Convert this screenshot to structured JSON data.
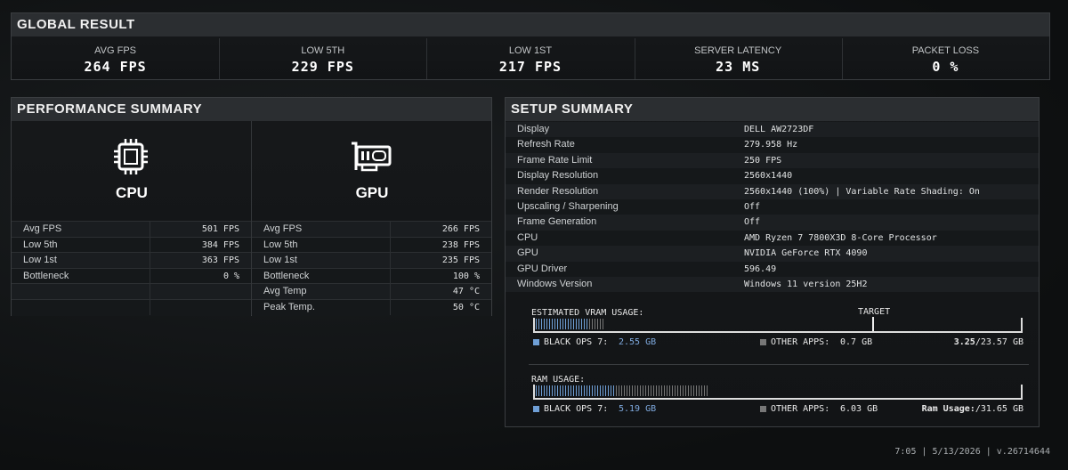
{
  "global_result": {
    "title": "GLOBAL RESULT",
    "stats": [
      {
        "label": "AVG FPS",
        "value": "264 FPS"
      },
      {
        "label": "LOW 5TH",
        "value": "229 FPS"
      },
      {
        "label": "LOW 1ST",
        "value": "217 FPS"
      },
      {
        "label": "SERVER LATENCY",
        "value": "23 MS"
      },
      {
        "label": "PACKET LOSS",
        "value": "0 %"
      }
    ]
  },
  "performance_summary": {
    "title": "PERFORMANCE SUMMARY",
    "cpu": {
      "name": "CPU",
      "rows": [
        [
          "Avg FPS",
          "501 FPS"
        ],
        [
          "Low 5th",
          "384 FPS"
        ],
        [
          "Low 1st",
          "363 FPS"
        ],
        [
          "Bottleneck",
          "0 %"
        ]
      ]
    },
    "gpu": {
      "name": "GPU",
      "rows": [
        [
          "Avg FPS",
          "266 FPS"
        ],
        [
          "Low 5th",
          "238 FPS"
        ],
        [
          "Low 1st",
          "235 FPS"
        ],
        [
          "Bottleneck",
          "100 %"
        ],
        [
          "Avg Temp",
          "47 °C"
        ],
        [
          "Peak Temp.",
          "50 °C"
        ]
      ]
    }
  },
  "setup_summary": {
    "title": "SETUP SUMMARY",
    "rows": [
      [
        "Display",
        "DELL AW2723DF"
      ],
      [
        "Refresh Rate",
        "279.958 Hz"
      ],
      [
        "Frame Rate Limit",
        "250 FPS"
      ],
      [
        "Display Resolution",
        "2560x1440"
      ],
      [
        "Render Resolution",
        "2560x1440 (100%) | Variable Rate Shading: On"
      ],
      [
        "Upscaling / Sharpening",
        "Off"
      ],
      [
        "Frame Generation",
        "Off"
      ],
      [
        "CPU",
        "AMD Ryzen 7 7800X3D 8-Core Processor"
      ],
      [
        "GPU",
        "NVIDIA GeForce RTX 4090"
      ],
      [
        "GPU Driver",
        "596.49"
      ],
      [
        "Windows Version",
        "Windows 11 version 25H2"
      ]
    ],
    "vram": {
      "title": "ESTIMATED VRAM USAGE:",
      "target": "TARGET",
      "game_label": "BLACK OPS 7:",
      "game": {
        "value": 2.55,
        "label": "2.55 GB"
      },
      "other_label": "OTHER APPS:",
      "other": {
        "value": 0.7,
        "label": "0.7 GB"
      },
      "used": "3.25",
      "total": {
        "value": 23.57,
        "label": "/23.57 GB"
      }
    },
    "ram": {
      "title": "RAM USAGE:",
      "game_label": "BLACK OPS 7:",
      "game": {
        "value": 5.19,
        "label": "5.19 GB"
      },
      "other_label": "OTHER APPS:",
      "other": {
        "value": 6.03,
        "label": "6.03 GB"
      },
      "used": "Ram Usage:",
      "total": {
        "value": 31.65,
        "label": "/31.65 GB"
      }
    }
  },
  "footer": "7:05 | 5/13/2026 | v.26714644"
}
